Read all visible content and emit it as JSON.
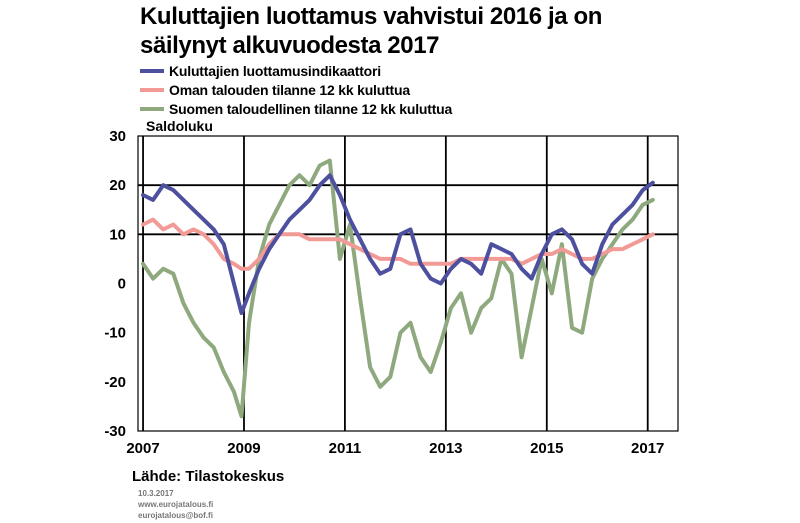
{
  "header": {
    "title": "Kuluttajien luottamus vahvistui 2016 ja on säilynyt alkuvuodesta 2017"
  },
  "footer": {
    "source": "Lähde: Tilastokeskus",
    "date": "10.3.2017",
    "lines": [
      "www.eurojatalous.fi",
      "eurojatalous@bof.fi"
    ]
  },
  "chart_data": {
    "type": "line",
    "title": "Kuluttajien luottamus vahvistui 2016 ja on säilynyt alkuvuodesta 2017",
    "ylabel": "Saldoluku",
    "xlabel": "",
    "ylim": [
      -30,
      30
    ],
    "yticks": [
      -30,
      -20,
      -10,
      0,
      10,
      20,
      30
    ],
    "xlim": [
      2006.9,
      2017.6
    ],
    "xticks": [
      2007,
      2009,
      2011,
      2013,
      2015,
      2017
    ],
    "xtick_labels": [
      "2007",
      "2009",
      "2011",
      "2013",
      "2015",
      "2017"
    ],
    "grid": "vertical at tick years, horizontal at -30/10/20/30",
    "legend_position": "top-left",
    "series": [
      {
        "name": "Kuluttajien luottamusindikaattori",
        "color": "#4d509e",
        "x": [
          2007.0,
          2007.2,
          2007.4,
          2007.6,
          2007.8,
          2008.0,
          2008.2,
          2008.4,
          2008.6,
          2008.8,
          2008.95,
          2009.1,
          2009.3,
          2009.5,
          2009.7,
          2009.9,
          2010.1,
          2010.3,
          2010.5,
          2010.7,
          2010.9,
          2011.1,
          2011.3,
          2011.5,
          2011.7,
          2011.9,
          2012.1,
          2012.3,
          2012.5,
          2012.7,
          2012.9,
          2013.1,
          2013.3,
          2013.5,
          2013.7,
          2013.9,
          2014.1,
          2014.3,
          2014.5,
          2014.7,
          2014.9,
          2015.1,
          2015.3,
          2015.5,
          2015.7,
          2015.9,
          2016.1,
          2016.3,
          2016.5,
          2016.7,
          2016.9,
          2017.1
        ],
        "y": [
          18,
          17,
          20,
          19,
          17,
          15,
          13,
          11,
          8,
          0,
          -6,
          -2,
          3,
          7,
          10,
          13,
          15,
          17,
          20,
          22,
          18,
          13,
          9,
          5,
          2,
          3,
          10,
          11,
          4,
          1,
          0,
          3,
          5,
          4,
          2,
          8,
          7,
          6,
          3,
          1,
          6,
          10,
          11,
          9,
          4,
          2,
          8,
          12,
          14,
          16,
          19,
          20.5
        ]
      },
      {
        "name": "Oman talouden tilanne 12 kk kuluttua",
        "color": "#f29a96",
        "x": [
          2007.0,
          2007.2,
          2007.4,
          2007.6,
          2007.8,
          2008.0,
          2008.2,
          2008.4,
          2008.6,
          2008.8,
          2008.95,
          2009.1,
          2009.3,
          2009.5,
          2009.7,
          2009.9,
          2010.1,
          2010.3,
          2010.5,
          2010.7,
          2010.9,
          2011.1,
          2011.3,
          2011.5,
          2011.7,
          2011.9,
          2012.1,
          2012.3,
          2012.5,
          2012.7,
          2012.9,
          2013.1,
          2013.3,
          2013.5,
          2013.7,
          2013.9,
          2014.1,
          2014.3,
          2014.5,
          2014.7,
          2014.9,
          2015.1,
          2015.3,
          2015.5,
          2015.7,
          2015.9,
          2016.1,
          2016.3,
          2016.5,
          2016.7,
          2016.9,
          2017.1
        ],
        "y": [
          12,
          13,
          11,
          12,
          10,
          11,
          10,
          8,
          5,
          4,
          3,
          3,
          5,
          8,
          10,
          10,
          10,
          9,
          9,
          9,
          9,
          8,
          7,
          6,
          5,
          5,
          5,
          4,
          4,
          4,
          4,
          4,
          5,
          5,
          5,
          5,
          5,
          5,
          4,
          5,
          6,
          6,
          7,
          6,
          5,
          5,
          6,
          7,
          7,
          8,
          9,
          10
        ]
      },
      {
        "name": "Suomen taloudellinen tilanne 12 kk kuluttua",
        "color": "#8fa97f",
        "x": [
          2007.0,
          2007.2,
          2007.4,
          2007.6,
          2007.8,
          2008.0,
          2008.2,
          2008.4,
          2008.6,
          2008.8,
          2008.95,
          2009.1,
          2009.3,
          2009.5,
          2009.7,
          2009.9,
          2010.1,
          2010.3,
          2010.5,
          2010.7,
          2010.9,
          2011.1,
          2011.3,
          2011.5,
          2011.7,
          2011.9,
          2012.1,
          2012.3,
          2012.5,
          2012.7,
          2012.9,
          2013.1,
          2013.3,
          2013.5,
          2013.7,
          2013.9,
          2014.1,
          2014.3,
          2014.5,
          2014.7,
          2014.9,
          2015.1,
          2015.3,
          2015.5,
          2015.7,
          2015.9,
          2016.1,
          2016.3,
          2016.5,
          2016.7,
          2016.9,
          2017.1
        ],
        "y": [
          4,
          1,
          3,
          2,
          -4,
          -8,
          -11,
          -13,
          -18,
          -22,
          -27,
          -8,
          5,
          12,
          16,
          20,
          22,
          20,
          24,
          25,
          5,
          12,
          -3,
          -17,
          -21,
          -19,
          -10,
          -8,
          -15,
          -18,
          -12,
          -5,
          -2,
          -10,
          -5,
          -3,
          5,
          2,
          -15,
          -5,
          5,
          -2,
          8,
          -9,
          -10,
          1,
          5,
          8,
          11,
          13,
          16,
          17
        ]
      }
    ]
  }
}
